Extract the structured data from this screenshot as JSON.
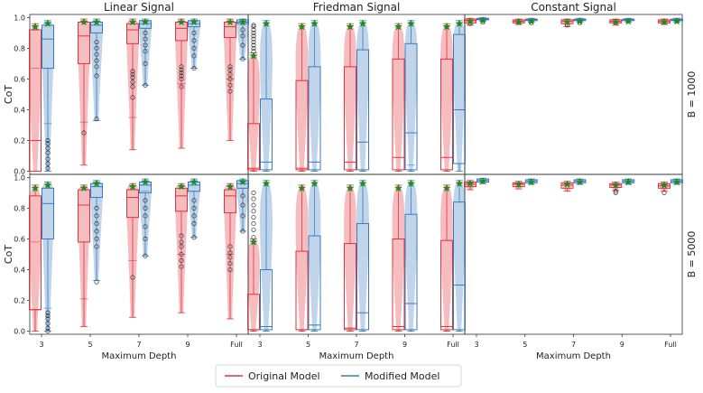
{
  "chart_data": {
    "type": "box",
    "panel_titles": [
      "Linear Signal",
      "Friedman Signal",
      "Constant Signal"
    ],
    "row_labels": [
      "B = 1000",
      "B = 5000"
    ],
    "ylabel": "CoT",
    "xlabel": "Maximum Depth",
    "categories": [
      "3",
      "5",
      "7",
      "9",
      "Full"
    ],
    "yticks": [
      "0.0",
      "0.2",
      "0.4",
      "0.6",
      "0.8",
      "1.0"
    ],
    "ylim": [
      -0.02,
      1.02
    ],
    "grid": false,
    "legend_position": "bottom-center",
    "series_colors": {
      "original": "#e0333a",
      "modified": "#3a7bbf",
      "star": "#1e8c1e"
    },
    "legend": {
      "original": "Original Model",
      "modified": "Modified Model"
    },
    "rows": [
      {
        "panels": [
          {
            "original": [
              {
                "q1": 0.0,
                "med": 0.2,
                "mean": 0.67,
                "q3": 0.92,
                "wlo": 0.0,
                "whi": 0.96,
                "fl": []
              },
              {
                "q1": 0.7,
                "med": 0.88,
                "mean": 0.32,
                "q3": 0.97,
                "wlo": 0.04,
                "whi": 0.99,
                "fl": [
                  0.25
                ]
              },
              {
                "q1": 0.83,
                "med": 0.92,
                "mean": 0.35,
                "q3": 0.96,
                "wlo": 0.14,
                "whi": 0.99,
                "fl": [
                  0.48,
                  0.55,
                  0.58,
                  0.61,
                  0.63,
                  0.65
                ]
              },
              {
                "q1": 0.85,
                "med": 0.93,
                "mean": 0.57,
                "q3": 0.97,
                "wlo": 0.15,
                "whi": 0.99,
                "fl": [
                  0.55,
                  0.6,
                  0.62,
                  0.64,
                  0.66,
                  0.68
                ]
              },
              {
                "q1": 0.87,
                "med": 0.94,
                "mean": 0.6,
                "q3": 0.97,
                "wlo": 0.2,
                "whi": 0.99,
                "fl": [
                  0.52,
                  0.56,
                  0.6,
                  0.63,
                  0.66,
                  0.68
                ]
              }
            ],
            "modified": [
              {
                "q1": 0.67,
                "med": 0.86,
                "mean": 0.31,
                "q3": 0.95,
                "wlo": 0.0,
                "whi": 0.98,
                "fl": [
                  0.12,
                  0.15,
                  0.18,
                  0.2,
                  0.08,
                  0.05,
                  0.02
                ]
              },
              {
                "q1": 0.9,
                "med": 0.95,
                "mean": 0.9,
                "q3": 0.97,
                "wlo": 0.33,
                "whi": 0.99,
                "fl": [
                  0.34,
                  0.62,
                  0.68,
                  0.72,
                  0.76,
                  0.8,
                  0.84
                ]
              },
              {
                "q1": 0.93,
                "med": 0.96,
                "mean": 0.93,
                "q3": 0.98,
                "wlo": 0.56,
                "whi": 0.99,
                "fl": [
                  0.56,
                  0.7,
                  0.78,
                  0.82,
                  0.86,
                  0.9
                ]
              },
              {
                "q1": 0.94,
                "med": 0.96,
                "mean": 0.94,
                "q3": 0.98,
                "wlo": 0.67,
                "whi": 0.99,
                "fl": [
                  0.67,
                  0.75,
                  0.8,
                  0.85,
                  0.9
                ]
              },
              {
                "q1": 0.96,
                "med": 0.97,
                "mean": 0.96,
                "q3": 0.985,
                "wlo": 0.73,
                "whi": 0.99,
                "fl": [
                  0.73,
                  0.82,
                  0.88,
                  0.92
                ]
              }
            ]
          },
          {
            "original": [
              {
                "q1": 0.01,
                "med": 0.02,
                "mean": 0.01,
                "q3": 0.31,
                "wlo": 0.0,
                "whi": 0.77,
                "fl": [
                  0.78,
                  0.8,
                  0.82,
                  0.84,
                  0.86,
                  0.88,
                  0.9,
                  0.92,
                  0.94,
                  0.95
                ]
              },
              {
                "q1": 0.01,
                "med": 0.02,
                "mean": 0.01,
                "q3": 0.59,
                "wlo": 0.0,
                "whi": 0.96,
                "fl": []
              },
              {
                "q1": 0.01,
                "med": 0.06,
                "mean": 0.01,
                "q3": 0.68,
                "wlo": 0.0,
                "whi": 0.96,
                "fl": []
              },
              {
                "q1": 0.01,
                "med": 0.09,
                "mean": 0.01,
                "q3": 0.73,
                "wlo": 0.0,
                "whi": 0.96,
                "fl": []
              },
              {
                "q1": 0.01,
                "med": 0.09,
                "mean": 0.01,
                "q3": 0.73,
                "wlo": 0.0,
                "whi": 0.96,
                "fl": []
              }
            ],
            "modified": [
              {
                "q1": 0.01,
                "med": 0.06,
                "mean": 0.06,
                "q3": 0.47,
                "wlo": 0.0,
                "whi": 0.98,
                "fl": []
              },
              {
                "q1": 0.01,
                "med": 0.06,
                "mean": 0.06,
                "q3": 0.68,
                "wlo": 0.0,
                "whi": 0.98,
                "fl": []
              },
              {
                "q1": 0.01,
                "med": 0.19,
                "mean": 0.01,
                "q3": 0.79,
                "wlo": 0.0,
                "whi": 0.98,
                "fl": []
              },
              {
                "q1": 0.01,
                "med": 0.25,
                "mean": 0.04,
                "q3": 0.83,
                "wlo": 0.0,
                "whi": 0.98,
                "fl": []
              },
              {
                "q1": 0.05,
                "med": 0.4,
                "mean": 0.05,
                "q3": 0.89,
                "wlo": 0.0,
                "whi": 0.98,
                "fl": []
              }
            ]
          },
          {
            "original": [
              {
                "q1": 0.965,
                "med": 0.98,
                "mean": 0.98,
                "q3": 0.99,
                "wlo": 0.95,
                "whi": 0.995,
                "fl": [
                  0.96
                ]
              },
              {
                "q1": 0.965,
                "med": 0.975,
                "mean": 0.975,
                "q3": 0.985,
                "wlo": 0.955,
                "whi": 0.99,
                "fl": []
              },
              {
                "q1": 0.96,
                "med": 0.975,
                "mean": 0.975,
                "q3": 0.985,
                "wlo": 0.94,
                "whi": 0.99,
                "fl": [
                  0.95
                ]
              },
              {
                "q1": 0.965,
                "med": 0.975,
                "mean": 0.975,
                "q3": 0.985,
                "wlo": 0.95,
                "whi": 0.99,
                "fl": []
              },
              {
                "q1": 0.965,
                "med": 0.975,
                "mean": 0.975,
                "q3": 0.985,
                "wlo": 0.955,
                "whi": 0.99,
                "fl": []
              }
            ],
            "modified": [
              {
                "q1": 0.985,
                "med": 0.99,
                "mean": 0.99,
                "q3": 0.995,
                "wlo": 0.975,
                "whi": 1.0,
                "fl": [
                  0.97
                ]
              },
              {
                "q1": 0.98,
                "med": 0.985,
                "mean": 0.985,
                "q3": 0.99,
                "wlo": 0.97,
                "whi": 0.995,
                "fl": [
                  0.965
                ]
              },
              {
                "q1": 0.98,
                "med": 0.985,
                "mean": 0.985,
                "q3": 0.99,
                "wlo": 0.97,
                "whi": 0.995,
                "fl": [
                  0.965
                ]
              },
              {
                "q1": 0.98,
                "med": 0.985,
                "mean": 0.985,
                "q3": 0.99,
                "wlo": 0.97,
                "whi": 0.995,
                "fl": []
              },
              {
                "q1": 0.98,
                "med": 0.985,
                "mean": 0.985,
                "q3": 0.99,
                "wlo": 0.97,
                "whi": 0.995,
                "fl": []
              }
            ]
          }
        ]
      },
      {
        "panels": [
          {
            "original": [
              {
                "q1": 0.14,
                "med": 0.14,
                "mean": 0.58,
                "q3": 0.88,
                "wlo": 0.0,
                "whi": 0.95,
                "fl": []
              },
              {
                "q1": 0.58,
                "med": 0.82,
                "mean": 0.21,
                "q3": 0.92,
                "wlo": 0.03,
                "whi": 0.95,
                "fl": []
              },
              {
                "q1": 0.74,
                "med": 0.87,
                "mean": 0.46,
                "q3": 0.92,
                "wlo": 0.09,
                "whi": 0.96,
                "fl": [
                  0.35
                ]
              },
              {
                "q1": 0.78,
                "med": 0.88,
                "mean": 0.5,
                "q3": 0.93,
                "wlo": 0.12,
                "whi": 0.96,
                "fl": [
                  0.42,
                  0.46,
                  0.5,
                  0.55,
                  0.58,
                  0.62
                ]
              },
              {
                "q1": 0.77,
                "med": 0.88,
                "mean": 0.5,
                "q3": 0.92,
                "wlo": 0.08,
                "whi": 0.96,
                "fl": [
                  0.4,
                  0.44,
                  0.48,
                  0.51,
                  0.55
                ]
              }
            ],
            "modified": [
              {
                "q1": 0.6,
                "med": 0.83,
                "mean": 0.15,
                "q3": 0.93,
                "wlo": 0.0,
                "whi": 0.97,
                "fl": [
                  0.0,
                  0.02,
                  0.05,
                  0.08,
                  0.1,
                  0.12
                ]
              },
              {
                "q1": 0.87,
                "med": 0.94,
                "mean": 0.87,
                "q3": 0.96,
                "wlo": 0.33,
                "whi": 0.98,
                "fl": [
                  0.32,
                  0.55,
                  0.6,
                  0.65,
                  0.7,
                  0.75,
                  0.8
                ]
              },
              {
                "q1": 0.9,
                "med": 0.95,
                "mean": 0.91,
                "q3": 0.97,
                "wlo": 0.49,
                "whi": 0.99,
                "fl": [
                  0.49,
                  0.6,
                  0.68,
                  0.75,
                  0.8,
                  0.85
                ]
              },
              {
                "q1": 0.91,
                "med": 0.95,
                "mean": 0.91,
                "q3": 0.97,
                "wlo": 0.61,
                "whi": 0.99,
                "fl": [
                  0.61,
                  0.7,
                  0.75,
                  0.8,
                  0.85
                ]
              },
              {
                "q1": 0.93,
                "med": 0.96,
                "mean": 0.93,
                "q3": 0.98,
                "wlo": 0.65,
                "whi": 0.99,
                "fl": [
                  0.65,
                  0.75,
                  0.82,
                  0.88
                ]
              }
            ]
          },
          {
            "original": [
              {
                "q1": 0.01,
                "med": 0.01,
                "mean": 0.01,
                "q3": 0.24,
                "wlo": 0.0,
                "whi": 0.6,
                "fl": [
                  0.61,
                  0.66,
                  0.7,
                  0.74,
                  0.78,
                  0.82,
                  0.86,
                  0.9
                ]
              },
              {
                "q1": 0.01,
                "med": 0.01,
                "mean": 0.01,
                "q3": 0.52,
                "wlo": 0.0,
                "whi": 0.95,
                "fl": []
              },
              {
                "q1": 0.01,
                "med": 0.02,
                "mean": 0.02,
                "q3": 0.57,
                "wlo": 0.0,
                "whi": 0.95,
                "fl": []
              },
              {
                "q1": 0.01,
                "med": 0.03,
                "mean": 0.01,
                "q3": 0.6,
                "wlo": 0.0,
                "whi": 0.95,
                "fl": []
              },
              {
                "q1": 0.01,
                "med": 0.03,
                "mean": 0.01,
                "q3": 0.59,
                "wlo": 0.0,
                "whi": 0.95,
                "fl": []
              }
            ],
            "modified": [
              {
                "q1": 0.01,
                "med": 0.03,
                "mean": 0.03,
                "q3": 0.4,
                "wlo": 0.0,
                "whi": 0.98,
                "fl": []
              },
              {
                "q1": 0.01,
                "med": 0.04,
                "mean": 0.04,
                "q3": 0.62,
                "wlo": 0.0,
                "whi": 0.98,
                "fl": []
              },
              {
                "q1": 0.01,
                "med": 0.12,
                "mean": 0.01,
                "q3": 0.7,
                "wlo": 0.0,
                "whi": 0.98,
                "fl": []
              },
              {
                "q1": 0.01,
                "med": 0.18,
                "mean": 0.01,
                "q3": 0.76,
                "wlo": 0.0,
                "whi": 0.98,
                "fl": []
              },
              {
                "q1": 0.01,
                "med": 0.3,
                "mean": 0.3,
                "q3": 0.84,
                "wlo": 0.0,
                "whi": 0.98,
                "fl": []
              }
            ]
          },
          {
            "original": [
              {
                "q1": 0.94,
                "med": 0.955,
                "mean": 0.955,
                "q3": 0.97,
                "wlo": 0.92,
                "whi": 0.98,
                "fl": []
              },
              {
                "q1": 0.94,
                "med": 0.955,
                "mean": 0.955,
                "q3": 0.965,
                "wlo": 0.925,
                "whi": 0.975,
                "fl": []
              },
              {
                "q1": 0.93,
                "med": 0.95,
                "mean": 0.95,
                "q3": 0.965,
                "wlo": 0.91,
                "whi": 0.975,
                "fl": []
              },
              {
                "q1": 0.935,
                "med": 0.95,
                "mean": 0.95,
                "q3": 0.96,
                "wlo": 0.915,
                "whi": 0.97,
                "fl": [
                  0.91,
                  0.9
                ]
              },
              {
                "q1": 0.93,
                "med": 0.945,
                "mean": 0.945,
                "q3": 0.96,
                "wlo": 0.91,
                "whi": 0.97,
                "fl": [
                  0.9
                ]
              }
            ],
            "modified": [
              {
                "q1": 0.97,
                "med": 0.98,
                "mean": 0.98,
                "q3": 0.99,
                "wlo": 0.96,
                "whi": 0.995,
                "fl": []
              },
              {
                "q1": 0.965,
                "med": 0.975,
                "mean": 0.975,
                "q3": 0.985,
                "wlo": 0.955,
                "whi": 0.99,
                "fl": []
              },
              {
                "q1": 0.965,
                "med": 0.975,
                "mean": 0.975,
                "q3": 0.985,
                "wlo": 0.955,
                "whi": 0.99,
                "fl": []
              },
              {
                "q1": 0.965,
                "med": 0.975,
                "mean": 0.975,
                "q3": 0.985,
                "wlo": 0.955,
                "whi": 0.99,
                "fl": []
              },
              {
                "q1": 0.965,
                "med": 0.975,
                "mean": 0.975,
                "q3": 0.985,
                "wlo": 0.955,
                "whi": 0.99,
                "fl": []
              }
            ]
          }
        ]
      }
    ]
  }
}
